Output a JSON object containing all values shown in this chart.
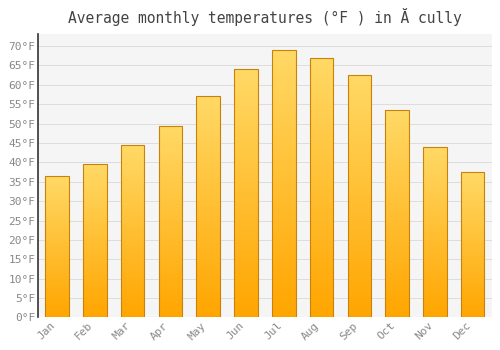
{
  "title": "Average monthly temperatures (°F ) in Ă cully",
  "months": [
    "Jan",
    "Feb",
    "Mar",
    "Apr",
    "May",
    "Jun",
    "Jul",
    "Aug",
    "Sep",
    "Oct",
    "Nov",
    "Dec"
  ],
  "values": [
    36.5,
    39.5,
    44.5,
    49.5,
    57.0,
    64.0,
    69.0,
    67.0,
    62.5,
    53.5,
    44.0,
    37.5
  ],
  "bar_color_top": "#FFD966",
  "bar_color_bottom": "#FFA500",
  "bar_edge_color": "#C8820A",
  "background_color": "#FFFFFF",
  "plot_bg_color": "#F5F5F5",
  "grid_color": "#DDDDDD",
  "tick_label_color": "#888888",
  "title_color": "#444444",
  "spine_color": "#333333",
  "ylim": [
    0,
    73
  ],
  "yticks": [
    0,
    5,
    10,
    15,
    20,
    25,
    30,
    35,
    40,
    45,
    50,
    55,
    60,
    65,
    70
  ],
  "ytick_labels": [
    "0°F",
    "5°F",
    "10°F",
    "15°F",
    "20°F",
    "25°F",
    "30°F",
    "35°F",
    "40°F",
    "45°F",
    "50°F",
    "55°F",
    "60°F",
    "65°F",
    "70°F"
  ],
  "title_fontsize": 10.5,
  "tick_fontsize": 8
}
